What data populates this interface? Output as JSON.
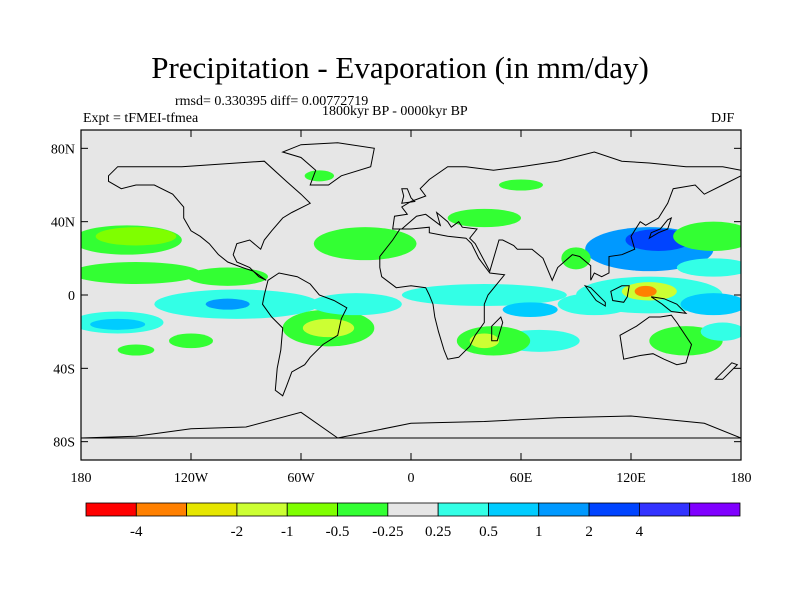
{
  "chart_data": {
    "type": "heatmap",
    "title": "Precipitation - Evaporation (in mm/day)",
    "stats": "rmsd= 0.330395  diff= 0.00772719",
    "left_label": "Expt = tFMEI-tfmea",
    "center_label": "1800kyr BP - 0000kyr BP",
    "right_label": "DJF",
    "lon_range": [
      -180,
      180
    ],
    "lat_range": [
      -90,
      90
    ],
    "x_ticks": [
      {
        "value": -180,
        "label": "180"
      },
      {
        "value": -120,
        "label": "120W"
      },
      {
        "value": -60,
        "label": "60W"
      },
      {
        "value": 0,
        "label": "0"
      },
      {
        "value": 60,
        "label": "60E"
      },
      {
        "value": 120,
        "label": "120E"
      },
      {
        "value": 180,
        "label": "180"
      }
    ],
    "y_ticks": [
      {
        "value": 80,
        "label": "80N"
      },
      {
        "value": 40,
        "label": "40N"
      },
      {
        "value": 0,
        "label": "0"
      },
      {
        "value": -40,
        "label": "40S"
      },
      {
        "value": -80,
        "label": "80S"
      }
    ],
    "colorbar": {
      "colors": [
        "#ff0000",
        "#ff8000",
        "#e6e600",
        "#ccff33",
        "#7fff00",
        "#33ff33",
        "#e6e6e6",
        "#33ffe6",
        "#00ccff",
        "#0099ff",
        "#0044ff",
        "#3333ff",
        "#8000ff"
      ],
      "labels": [
        "-4",
        "-2",
        "-1",
        "-0.5",
        "-0.25",
        "0.25",
        "0.5",
        "1",
        "2",
        "4"
      ],
      "label_boundaries": [
        1,
        3,
        4,
        5,
        6,
        7,
        8,
        9,
        10,
        11
      ]
    },
    "background_color": "#e6e6e6",
    "anomaly_regions": [
      {
        "level": 5,
        "lon": -155,
        "lat": 30,
        "rlon": 30,
        "rlat": 8
      },
      {
        "level": 4,
        "lon": -150,
        "lat": 32,
        "rlon": 22,
        "rlat": 5
      },
      {
        "level": 5,
        "lon": -150,
        "lat": 12,
        "rlon": 35,
        "rlat": 6
      },
      {
        "level": 5,
        "lon": -100,
        "lat": 10,
        "rlon": 22,
        "rlat": 5
      },
      {
        "level": 7,
        "lon": -160,
        "lat": -15,
        "rlon": 25,
        "rlat": 6
      },
      {
        "level": 8,
        "lon": -160,
        "lat": -16,
        "rlon": 15,
        "rlat": 3
      },
      {
        "level": 7,
        "lon": -95,
        "lat": -5,
        "rlon": 45,
        "rlat": 8
      },
      {
        "level": 9,
        "lon": -100,
        "lat": -5,
        "rlon": 12,
        "rlat": 3
      },
      {
        "level": 5,
        "lon": -120,
        "lat": -25,
        "rlon": 12,
        "rlat": 4
      },
      {
        "level": 5,
        "lon": -45,
        "lat": -18,
        "rlon": 25,
        "rlat": 10
      },
      {
        "level": 3,
        "lon": -45,
        "lat": -18,
        "rlon": 14,
        "rlat": 5
      },
      {
        "level": 7,
        "lon": -30,
        "lat": -5,
        "rlon": 25,
        "rlat": 6
      },
      {
        "level": 5,
        "lon": -25,
        "lat": 28,
        "rlon": 28,
        "rlat": 9
      },
      {
        "level": 5,
        "lon": 40,
        "lat": 42,
        "rlon": 20,
        "rlat": 5
      },
      {
        "level": 5,
        "lon": -50,
        "lat": 65,
        "rlon": 8,
        "rlat": 3
      },
      {
        "level": 7,
        "lon": 40,
        "lat": 0,
        "rlon": 45,
        "rlat": 6
      },
      {
        "level": 8,
        "lon": 65,
        "lat": -8,
        "rlon": 15,
        "rlat": 4
      },
      {
        "level": 7,
        "lon": 70,
        "lat": -25,
        "rlon": 22,
        "rlat": 6
      },
      {
        "level": 5,
        "lon": 45,
        "lat": -25,
        "rlon": 20,
        "rlat": 8
      },
      {
        "level": 3,
        "lon": 40,
        "lat": -25,
        "rlon": 8,
        "rlat": 4
      },
      {
        "level": 7,
        "lon": 100,
        "lat": -5,
        "rlon": 20,
        "rlat": 6
      },
      {
        "level": 9,
        "lon": 130,
        "lat": 25,
        "rlon": 35,
        "rlat": 12
      },
      {
        "level": 10,
        "lon": 135,
        "lat": 30,
        "rlon": 18,
        "rlat": 6
      },
      {
        "level": 5,
        "lon": 165,
        "lat": 32,
        "rlon": 22,
        "rlat": 8
      },
      {
        "level": 7,
        "lon": 165,
        "lat": 15,
        "rlon": 20,
        "rlat": 5
      },
      {
        "level": 7,
        "lon": 130,
        "lat": 0,
        "rlon": 40,
        "rlat": 10
      },
      {
        "level": 3,
        "lon": 130,
        "lat": 2,
        "rlon": 15,
        "rlat": 5
      },
      {
        "level": 1,
        "lon": 128,
        "lat": 2,
        "rlon": 6,
        "rlat": 3
      },
      {
        "level": 8,
        "lon": 165,
        "lat": -5,
        "rlon": 18,
        "rlat": 6
      },
      {
        "level": 5,
        "lon": 150,
        "lat": -25,
        "rlon": 20,
        "rlat": 8
      },
      {
        "level": 7,
        "lon": 170,
        "lat": -20,
        "rlon": 12,
        "rlat": 5
      },
      {
        "level": 5,
        "lon": 60,
        "lat": 60,
        "rlon": 12,
        "rlat": 3
      },
      {
        "level": 5,
        "lon": 90,
        "lat": 20,
        "rlon": 8,
        "rlat": 6
      },
      {
        "level": 5,
        "lon": -150,
        "lat": -30,
        "rlon": 10,
        "rlat": 3
      }
    ]
  }
}
